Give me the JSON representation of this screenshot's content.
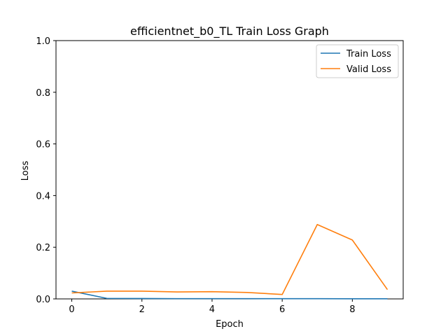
{
  "chart_data": {
    "type": "line",
    "title": "efficientnet_b0_TL Train Loss Graph",
    "xlabel": "Epoch",
    "ylabel": "Loss",
    "xlim": [
      -0.45,
      9.45
    ],
    "ylim": [
      0.0,
      1.0
    ],
    "x": [
      0,
      1,
      2,
      3,
      4,
      5,
      6,
      7,
      8,
      9
    ],
    "x_ticks": [
      0,
      2,
      4,
      6,
      8
    ],
    "y_ticks": [
      0.0,
      0.2,
      0.4,
      0.6,
      0.8,
      1.0
    ],
    "x_tick_labels": [
      "0",
      "2",
      "4",
      "6",
      "8"
    ],
    "y_tick_labels": [
      "0.0",
      "0.2",
      "0.4",
      "0.6",
      "0.8",
      "1.0"
    ],
    "grid": false,
    "legend_position": "top-right",
    "series": [
      {
        "name": "Train Loss",
        "color": "#1f77b4",
        "values": [
          0.03,
          0.002,
          0.0015,
          0.001,
          0.001,
          0.001,
          0.0008,
          0.0008,
          0.0006,
          0.0005
        ]
      },
      {
        "name": "Valid Loss",
        "color": "#ff7f0e",
        "values": [
          0.023,
          0.03,
          0.03,
          0.027,
          0.028,
          0.025,
          0.017,
          0.288,
          0.228,
          0.036
        ]
      }
    ]
  }
}
